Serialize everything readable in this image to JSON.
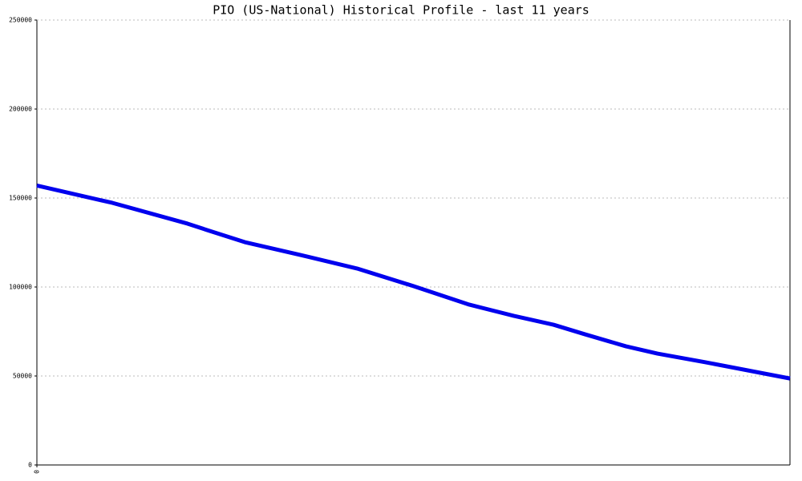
{
  "chart_data": {
    "type": "line",
    "title": "PIO (US-National) Historical Profile - last 11 years",
    "x": [
      0,
      10,
      20,
      22.6,
      27.6,
      35,
      42.5,
      50,
      57.4,
      63.3,
      68.6,
      72.8,
      78.2,
      82.4,
      88.8,
      100
    ],
    "series": [
      {
        "name": "PIO",
        "color": "#0000ee",
        "values": [
          157000,
          147300,
          135600,
          132000,
          125200,
          118000,
          110400,
          100500,
          90100,
          83800,
          78800,
          73400,
          66700,
          62600,
          57700,
          48600
        ]
      }
    ],
    "xlim": [
      0,
      100
    ],
    "xticks": [
      0
    ],
    "ylim": [
      0,
      250000
    ],
    "yticks": [
      0,
      50000,
      100000,
      150000,
      200000,
      250000
    ],
    "grid": true
  }
}
